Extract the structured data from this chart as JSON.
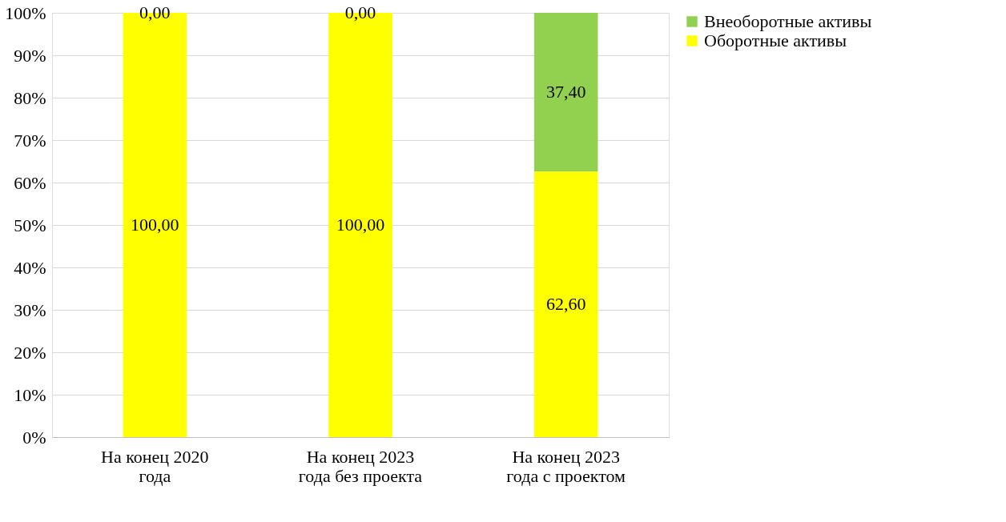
{
  "chart_data": {
    "type": "bar",
    "stacked": true,
    "categories": [
      "На конец 2020\nгода",
      "На конец 2023\nгода без проекта",
      "На конец 2023\nгода с проектом"
    ],
    "series": [
      {
        "name": "Оборотные активы",
        "color": "#ffff00",
        "values": [
          100,
          100,
          62.6
        ],
        "value_labels": [
          "100,00",
          "100,00",
          "62,60"
        ]
      },
      {
        "name": "Внеоборотные активы",
        "color": "#92d050",
        "values": [
          0,
          0,
          37.4
        ],
        "value_labels": [
          "0,00",
          "0,00",
          "37,40"
        ]
      }
    ],
    "ylim": [
      0,
      100
    ],
    "yticks": [
      {
        "value": 0,
        "label": "0%"
      },
      {
        "value": 10,
        "label": "10%"
      },
      {
        "value": 20,
        "label": "20%"
      },
      {
        "value": 30,
        "label": "30%"
      },
      {
        "value": 40,
        "label": "40%"
      },
      {
        "value": 50,
        "label": "50%"
      },
      {
        "value": 60,
        "label": "60%"
      },
      {
        "value": 70,
        "label": "70%"
      },
      {
        "value": 80,
        "label": "80%"
      },
      {
        "value": 90,
        "label": "90%"
      },
      {
        "value": 100,
        "label": "100%"
      }
    ],
    "grid": "y",
    "legend": "right"
  }
}
